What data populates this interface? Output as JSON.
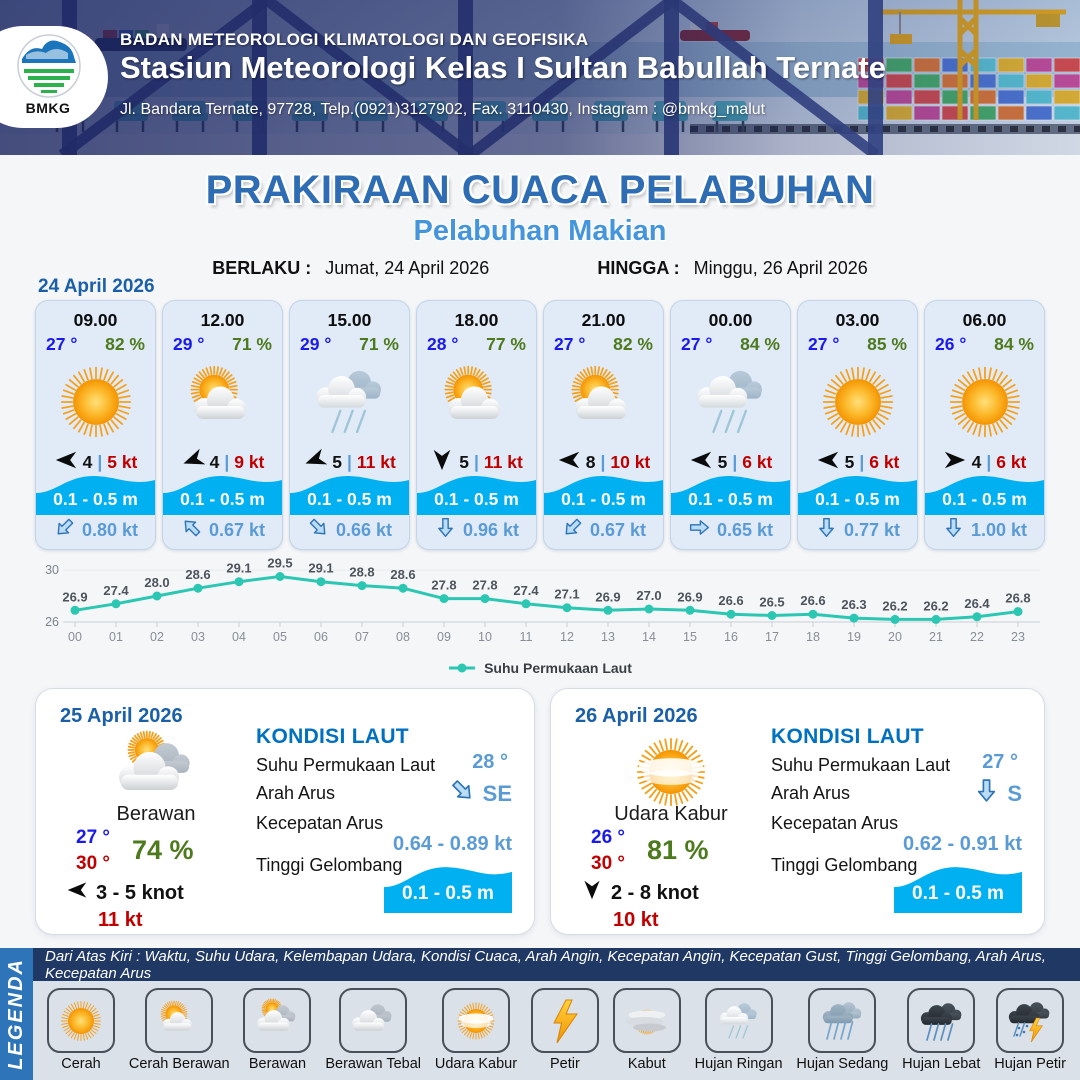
{
  "header": {
    "agency": "BADAN METEOROLOGI KLIMATOLOGI DAN GEOFISIKA",
    "station": "Stasiun Meteorologi Kelas I Sultan Babullah Ternate",
    "address": "Jl. Bandara Ternate, 97728, Telp.(0921)3127902, Fax. 3110430, Instagram : @bmkg_malut",
    "logo_label": "BMKG"
  },
  "title": {
    "main": "PRAKIRAAN CUACA PELABUHAN",
    "subtitle": "Pelabuhan Makian",
    "berlaku_label": "BERLAKU :",
    "berlaku_value": "Jumat, 24 April 2026",
    "hingga_label": "HINGGA :",
    "hingga_value": "Minggu, 26 April 2026"
  },
  "ui": {
    "gust_separator": "|"
  },
  "colors": {
    "title_blue": "#2e6db4",
    "subtitle_blue": "#4595dc",
    "date_blue": "#1a5fa8",
    "temp_blue": "#1a1aee",
    "humidity_green": "#4e7a1e",
    "gust_red": "#c00000",
    "current_blue": "#5b9bd5",
    "wave_cyan": "#00b0f0",
    "sst_line_teal": "#2cc7b2",
    "kondisi_laut_blue": "#0070c0"
  },
  "day1": {
    "date": "24 April 2026",
    "hours": [
      {
        "time": "09.00",
        "temp": "27 °",
        "rh": "82 %",
        "icon": "cerah",
        "wind_dir": "W",
        "wind": "4",
        "gust": "5 kt",
        "wave": "0.1 - 0.5 m",
        "current_dir": "SW",
        "current": "0.80 kt"
      },
      {
        "time": "12.00",
        "temp": "29 °",
        "rh": "71 %",
        "icon": "cerah-berawan",
        "wind_dir": "WSW",
        "wind": "4",
        "gust": "9 kt",
        "wave": "0.1 - 0.5 m",
        "current_dir": "NW",
        "current": "0.67 kt"
      },
      {
        "time": "15.00",
        "temp": "29 °",
        "rh": "71 %",
        "icon": "hujan-ringan",
        "wind_dir": "WSW",
        "wind": "5",
        "gust": "11 kt",
        "wave": "0.1 - 0.5 m",
        "current_dir": "SE",
        "current": "0.66 kt"
      },
      {
        "time": "18.00",
        "temp": "28 °",
        "rh": "77 %",
        "icon": "cerah-berawan",
        "wind_dir": "S",
        "wind": "5",
        "gust": "11 kt",
        "wave": "0.1 - 0.5 m",
        "current_dir": "S",
        "current": "0.96 kt"
      },
      {
        "time": "21.00",
        "temp": "27 °",
        "rh": "82 %",
        "icon": "cerah-berawan",
        "wind_dir": "W",
        "wind": "8",
        "gust": "10 kt",
        "wave": "0.1 - 0.5 m",
        "current_dir": "SW",
        "current": "0.67 kt"
      },
      {
        "time": "00.00",
        "temp": "27 °",
        "rh": "84 %",
        "icon": "hujan-ringan",
        "wind_dir": "W",
        "wind": "5",
        "gust": "6 kt",
        "wave": "0.1 - 0.5 m",
        "current_dir": "E",
        "current": "0.65 kt"
      },
      {
        "time": "03.00",
        "temp": "27 °",
        "rh": "85 %",
        "icon": "cerah",
        "wind_dir": "W",
        "wind": "5",
        "gust": "6 kt",
        "wave": "0.1 - 0.5 m",
        "current_dir": "S",
        "current": "0.77 kt"
      },
      {
        "time": "06.00",
        "temp": "26 °",
        "rh": "84 %",
        "icon": "cerah",
        "wind_dir": "E",
        "wind": "4",
        "gust": "6 kt",
        "wave": "0.1 - 0.5 m",
        "current_dir": "S",
        "current": "1.00 kt"
      }
    ]
  },
  "chart_data": {
    "type": "line",
    "title": "",
    "series_name": "Suhu Permukaan Laut",
    "x": [
      "00",
      "01",
      "02",
      "03",
      "04",
      "05",
      "06",
      "07",
      "08",
      "09",
      "10",
      "11",
      "12",
      "13",
      "14",
      "15",
      "16",
      "17",
      "18",
      "19",
      "20",
      "21",
      "22",
      "23"
    ],
    "values": [
      26.9,
      27.4,
      28.0,
      28.6,
      29.1,
      29.5,
      29.1,
      28.8,
      28.6,
      27.8,
      27.8,
      27.4,
      27.1,
      26.9,
      27.0,
      26.9,
      26.6,
      26.5,
      26.6,
      26.3,
      26.2,
      26.2,
      26.4,
      26.8
    ],
    "ylim": [
      26,
      30
    ],
    "yticks": [
      26,
      30
    ],
    "line_color": "#2cc7b2",
    "grid": true,
    "legend_position": "bottom"
  },
  "day2": {
    "date": "25 April 2026",
    "condition": "Berawan",
    "icon": "berawan",
    "temp_min": "27 °",
    "temp_max": "30 °",
    "rh": "74 %",
    "wind_dir": "W",
    "wind": "3  - 5 knot",
    "gust": "11 kt",
    "sea": {
      "heading": "KONDISI LAUT",
      "sst_label": "Suhu Permukaan Laut",
      "sst": "28 °",
      "arah_label": "Arah Arus",
      "arah_dir": "SE",
      "arah": "SE",
      "kec_label": "Kecepatan Arus",
      "kec": "0.64  - 0.89 kt",
      "wave_label": "Tinggi Gelombang",
      "wave": "0.1 - 0.5 m"
    }
  },
  "day3": {
    "date": "26 April 2026",
    "condition": "Udara Kabur",
    "icon": "udara-kabur",
    "temp_min": "26 °",
    "temp_max": "30 °",
    "rh": "81 %",
    "wind_dir": "S",
    "wind": "2  - 8 knot",
    "gust": "10 kt",
    "sea": {
      "heading": "KONDISI LAUT",
      "sst_label": "Suhu Permukaan Laut",
      "sst": "27 °",
      "arah_label": "Arah Arus",
      "arah_dir": "S",
      "arah": "S",
      "kec_label": "Kecepatan Arus",
      "kec": "0.62  - 0.91 kt",
      "wave_label": "Tinggi Gelombang",
      "wave": "0.1 - 0.5 m"
    }
  },
  "legend": {
    "title": "LEGENDA",
    "note": "Dari Atas Kiri : Waktu, Suhu Udara, Kelembapan Udara, Kondisi Cuaca, Arah Angin, Kecepatan Angin, Kecepatan Gust, Tinggi Gelombang, Arah Arus, Kecepatan Arus",
    "items": [
      {
        "label": "Cerah",
        "icon": "cerah"
      },
      {
        "label": "Cerah Berawan",
        "icon": "cerah-berawan"
      },
      {
        "label": "Berawan",
        "icon": "berawan"
      },
      {
        "label": "Berawan Tebal",
        "icon": "berawan-tebal"
      },
      {
        "label": "Udara Kabur",
        "icon": "udara-kabur"
      },
      {
        "label": "Petir",
        "icon": "petir"
      },
      {
        "label": "Kabut",
        "icon": "kabut"
      },
      {
        "label": "Hujan Ringan",
        "icon": "hujan-ringan"
      },
      {
        "label": "Hujan Sedang",
        "icon": "hujan-sedang"
      },
      {
        "label": "Hujan Lebat",
        "icon": "hujan-lebat"
      },
      {
        "label": "Hujan Petir",
        "icon": "hujan-petir"
      }
    ]
  }
}
